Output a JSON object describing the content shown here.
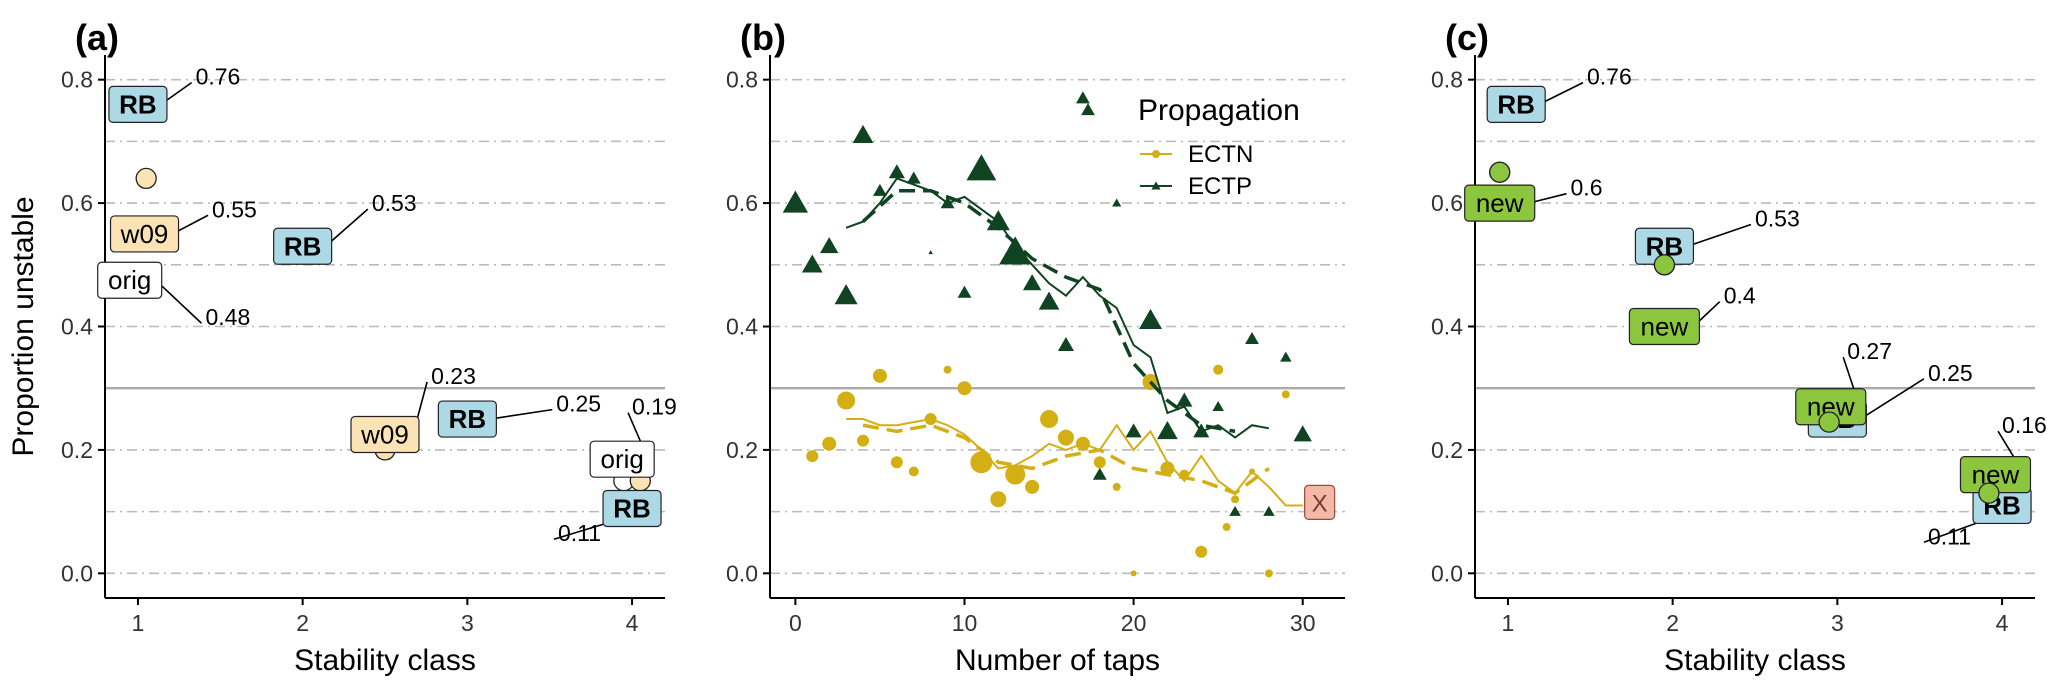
{
  "colors": {
    "ectn": "#D4AF14",
    "ectp": "#0F4321",
    "rb_fill": "#ADD8E6",
    "w09_fill": "#FBE3B5",
    "orig_fill": "#FFFFFF",
    "new_fill": "#8CC63F",
    "x_fill": "#F2B8A8",
    "hline": "#AAAAAA",
    "grid": "#BBBBBB",
    "axis": "#000000",
    "point_a": "#FBE3B5",
    "point_c": "#8CC63F"
  },
  "chart_data": [
    {
      "panel": "(a)",
      "type": "scatter",
      "xlabel": "Stability class",
      "ylabel": "Proportion unstable",
      "xlim": [
        0.8,
        4.2
      ],
      "ylim": [
        -0.04,
        0.84
      ],
      "xticks": [
        1,
        2,
        3,
        4
      ],
      "yticks": [
        0.0,
        0.2,
        0.4,
        0.6,
        0.8
      ],
      "ytick_labels": [
        "0.0",
        "0.2",
        "0.4",
        "0.6",
        "0.8"
      ],
      "hline": 0.3,
      "grid": "horizontal dash-dot",
      "points": [
        {
          "x": 1.05,
          "y": 0.64,
          "fill": "#FBE3B5"
        },
        {
          "x": 0.99,
          "y": 0.54,
          "fill": "#FFFFFF"
        },
        {
          "x": 2.5,
          "y": 0.2,
          "fill": "#FBE3B5"
        },
        {
          "x": 3.95,
          "y": 0.15,
          "fill": "#FFFFFF"
        },
        {
          "x": 4.05,
          "y": 0.15,
          "fill": "#FBE3B5"
        }
      ],
      "labels": [
        {
          "text": "RB",
          "x": 1.0,
          "y": 0.76,
          "style": "rb",
          "value": "0.76",
          "vx": 1.35,
          "vy": 0.805
        },
        {
          "text": "w09",
          "x": 1.04,
          "y": 0.55,
          "style": "w09",
          "value": "0.55",
          "vx": 1.45,
          "vy": 0.59
        },
        {
          "text": "orig",
          "x": 0.95,
          "y": 0.475,
          "style": "orig",
          "value": "0.48",
          "vx": 1.41,
          "vy": 0.415
        },
        {
          "text": "RB",
          "x": 2.0,
          "y": 0.53,
          "style": "rb",
          "value": "0.53",
          "vx": 2.42,
          "vy": 0.6
        },
        {
          "text": "w09",
          "x": 2.5,
          "y": 0.225,
          "style": "w09",
          "value": "0.23",
          "vx": 2.78,
          "vy": 0.32
        },
        {
          "text": "RB",
          "x": 3.0,
          "y": 0.25,
          "style": "rb",
          "value": "0.25",
          "vx": 3.54,
          "vy": 0.275
        },
        {
          "text": "orig",
          "x": 3.94,
          "y": 0.185,
          "style": "orig",
          "value": "0.19",
          "vx": 4.0,
          "vy": 0.27
        },
        {
          "text": "RB",
          "x": 4.0,
          "y": 0.105,
          "style": "rb",
          "value": "0.11",
          "vx": 3.55,
          "vy": 0.065
        }
      ]
    },
    {
      "panel": "(b)",
      "type": "scatter+line",
      "xlabel": "Number of taps",
      "ylabel": "",
      "xlim": [
        -1.5,
        32.5
      ],
      "ylim": [
        -0.04,
        0.84
      ],
      "xticks": [
        0,
        10,
        20,
        30
      ],
      "yticks": [
        0.0,
        0.2,
        0.4,
        0.6,
        0.8
      ],
      "ytick_labels": [
        "0.0",
        "0.2",
        "0.4",
        "0.6",
        "0.8"
      ],
      "hline": 0.3,
      "grid": "horizontal dash-dot",
      "legend": {
        "title": "Propagation",
        "position": "top-right",
        "entries": [
          "ECTN",
          "ECTP"
        ]
      },
      "x_marker": {
        "text": "X",
        "x": 31,
        "y": 0.115
      },
      "series": [
        {
          "name": "ECTN",
          "marker": "circle",
          "points": [
            {
              "x": 1,
              "y": 0.19,
              "s": 6
            },
            {
              "x": 2,
              "y": 0.21,
              "s": 7
            },
            {
              "x": 3,
              "y": 0.28,
              "s": 9
            },
            {
              "x": 4,
              "y": 0.215,
              "s": 6
            },
            {
              "x": 5,
              "y": 0.32,
              "s": 7
            },
            {
              "x": 6,
              "y": 0.18,
              "s": 6
            },
            {
              "x": 7,
              "y": 0.165,
              "s": 5
            },
            {
              "x": 8,
              "y": 0.25,
              "s": 6
            },
            {
              "x": 9,
              "y": 0.33,
              "s": 4
            },
            {
              "x": 10,
              "y": 0.3,
              "s": 7
            },
            {
              "x": 11,
              "y": 0.18,
              "s": 11
            },
            {
              "x": 12,
              "y": 0.12,
              "s": 8
            },
            {
              "x": 13,
              "y": 0.16,
              "s": 10
            },
            {
              "x": 14,
              "y": 0.14,
              "s": 7
            },
            {
              "x": 15,
              "y": 0.25,
              "s": 9
            },
            {
              "x": 16,
              "y": 0.22,
              "s": 8
            },
            {
              "x": 17,
              "y": 0.21,
              "s": 7
            },
            {
              "x": 18,
              "y": 0.18,
              "s": 6
            },
            {
              "x": 19,
              "y": 0.14,
              "s": 4
            },
            {
              "x": 20,
              "y": 0.0,
              "s": 3
            },
            {
              "x": 21,
              "y": 0.31,
              "s": 8
            },
            {
              "x": 22,
              "y": 0.17,
              "s": 7
            },
            {
              "x": 23,
              "y": 0.16,
              "s": 5
            },
            {
              "x": 24,
              "y": 0.035,
              "s": 6
            },
            {
              "x": 25,
              "y": 0.33,
              "s": 5
            },
            {
              "x": 25.5,
              "y": 0.075,
              "s": 4
            },
            {
              "x": 26,
              "y": 0.12,
              "s": 4
            },
            {
              "x": 27,
              "y": 0.165,
              "s": 3
            },
            {
              "x": 28,
              "y": 0.0,
              "s": 4
            },
            {
              "x": 29,
              "y": 0.29,
              "s": 4
            }
          ],
          "line_solid": [
            {
              "x": 3,
              "y": 0.25
            },
            {
              "x": 4,
              "y": 0.25
            },
            {
              "x": 5,
              "y": 0.24
            },
            {
              "x": 6,
              "y": 0.24
            },
            {
              "x": 7,
              "y": 0.245
            },
            {
              "x": 8,
              "y": 0.25
            },
            {
              "x": 9,
              "y": 0.24
            },
            {
              "x": 10,
              "y": 0.225
            },
            {
              "x": 11,
              "y": 0.2
            },
            {
              "x": 12,
              "y": 0.17
            },
            {
              "x": 13,
              "y": 0.175
            },
            {
              "x": 14,
              "y": 0.19
            },
            {
              "x": 15,
              "y": 0.21
            },
            {
              "x": 16,
              "y": 0.2
            },
            {
              "x": 17,
              "y": 0.21
            },
            {
              "x": 18,
              "y": 0.2
            },
            {
              "x": 19,
              "y": 0.24
            },
            {
              "x": 20,
              "y": 0.2
            },
            {
              "x": 21,
              "y": 0.23
            },
            {
              "x": 22,
              "y": 0.18
            },
            {
              "x": 23,
              "y": 0.15
            },
            {
              "x": 24,
              "y": 0.19
            },
            {
              "x": 25,
              "y": 0.15
            },
            {
              "x": 26,
              "y": 0.13
            },
            {
              "x": 27,
              "y": 0.165
            },
            {
              "x": 28,
              "y": 0.14
            },
            {
              "x": 29,
              "y": 0.11
            },
            {
              "x": 30,
              "y": 0.11
            }
          ],
          "line_dashed": [
            {
              "x": 4,
              "y": 0.24
            },
            {
              "x": 6,
              "y": 0.23
            },
            {
              "x": 8,
              "y": 0.24
            },
            {
              "x": 10,
              "y": 0.22
            },
            {
              "x": 12,
              "y": 0.18
            },
            {
              "x": 14,
              "y": 0.17
            },
            {
              "x": 16,
              "y": 0.19
            },
            {
              "x": 18,
              "y": 0.2
            },
            {
              "x": 20,
              "y": 0.17
            },
            {
              "x": 22,
              "y": 0.16
            },
            {
              "x": 24,
              "y": 0.15
            },
            {
              "x": 26,
              "y": 0.13
            },
            {
              "x": 28,
              "y": 0.17
            }
          ]
        },
        {
          "name": "ECTP",
          "marker": "triangle",
          "points": [
            {
              "x": 0,
              "y": 0.6,
              "s": 11
            },
            {
              "x": 1,
              "y": 0.5,
              "s": 9
            },
            {
              "x": 2,
              "y": 0.53,
              "s": 8
            },
            {
              "x": 3,
              "y": 0.45,
              "s": 10
            },
            {
              "x": 4,
              "y": 0.71,
              "s": 9
            },
            {
              "x": 5,
              "y": 0.62,
              "s": 6
            },
            {
              "x": 6,
              "y": 0.65,
              "s": 7
            },
            {
              "x": 7,
              "y": 0.64,
              "s": 6
            },
            {
              "x": 8,
              "y": 0.52,
              "s": 2
            },
            {
              "x": 9,
              "y": 0.6,
              "s": 6
            },
            {
              "x": 10,
              "y": 0.455,
              "s": 6
            },
            {
              "x": 11,
              "y": 0.655,
              "s": 13
            },
            {
              "x": 12,
              "y": 0.57,
              "s": 10
            },
            {
              "x": 13,
              "y": 0.52,
              "s": 14
            },
            {
              "x": 14,
              "y": 0.47,
              "s": 8
            },
            {
              "x": 15,
              "y": 0.44,
              "s": 9
            },
            {
              "x": 16,
              "y": 0.37,
              "s": 7
            },
            {
              "x": 17,
              "y": 0.77,
              "s": 6
            },
            {
              "x": 18,
              "y": 0.16,
              "s": 6
            },
            {
              "x": 19,
              "y": 0.6,
              "s": 4
            },
            {
              "x": 20,
              "y": 0.23,
              "s": 7
            },
            {
              "x": 21,
              "y": 0.41,
              "s": 10
            },
            {
              "x": 22,
              "y": 0.23,
              "s": 9
            },
            {
              "x": 23,
              "y": 0.28,
              "s": 7
            },
            {
              "x": 24,
              "y": 0.23,
              "s": 7
            },
            {
              "x": 25,
              "y": 0.27,
              "s": 5
            },
            {
              "x": 26,
              "y": 0.1,
              "s": 5
            },
            {
              "x": 27,
              "y": 0.38,
              "s": 6
            },
            {
              "x": 28,
              "y": 0.1,
              "s": 5
            },
            {
              "x": 29,
              "y": 0.35,
              "s": 5
            },
            {
              "x": 30,
              "y": 0.225,
              "s": 8
            }
          ],
          "line_solid": [
            {
              "x": 3,
              "y": 0.56
            },
            {
              "x": 4,
              "y": 0.57
            },
            {
              "x": 5,
              "y": 0.6
            },
            {
              "x": 6,
              "y": 0.64
            },
            {
              "x": 7,
              "y": 0.63
            },
            {
              "x": 8,
              "y": 0.62
            },
            {
              "x": 9,
              "y": 0.6
            },
            {
              "x": 10,
              "y": 0.61
            },
            {
              "x": 11,
              "y": 0.59
            },
            {
              "x": 12,
              "y": 0.57
            },
            {
              "x": 13,
              "y": 0.53
            },
            {
              "x": 14,
              "y": 0.5
            },
            {
              "x": 15,
              "y": 0.47
            },
            {
              "x": 16,
              "y": 0.45
            },
            {
              "x": 17,
              "y": 0.48
            },
            {
              "x": 18,
              "y": 0.45
            },
            {
              "x": 19,
              "y": 0.43
            },
            {
              "x": 20,
              "y": 0.37
            },
            {
              "x": 21,
              "y": 0.35
            },
            {
              "x": 22,
              "y": 0.26
            },
            {
              "x": 23,
              "y": 0.27
            },
            {
              "x": 24,
              "y": 0.23
            },
            {
              "x": 25,
              "y": 0.24
            },
            {
              "x": 26,
              "y": 0.22
            },
            {
              "x": 27,
              "y": 0.24
            },
            {
              "x": 28,
              "y": 0.235
            }
          ],
          "line_dashed": [
            {
              "x": 4,
              "y": 0.57
            },
            {
              "x": 6,
              "y": 0.62
            },
            {
              "x": 8,
              "y": 0.62
            },
            {
              "x": 10,
              "y": 0.6
            },
            {
              "x": 12,
              "y": 0.56
            },
            {
              "x": 14,
              "y": 0.51
            },
            {
              "x": 16,
              "y": 0.48
            },
            {
              "x": 18,
              "y": 0.46
            },
            {
              "x": 20,
              "y": 0.34
            },
            {
              "x": 22,
              "y": 0.28
            },
            {
              "x": 24,
              "y": 0.24
            },
            {
              "x": 26,
              "y": 0.23
            }
          ]
        }
      ]
    },
    {
      "panel": "(c)",
      "type": "scatter",
      "xlabel": "Stability class",
      "ylabel": "",
      "xlim": [
        0.8,
        4.2
      ],
      "ylim": [
        -0.04,
        0.84
      ],
      "xticks": [
        1,
        2,
        3,
        4
      ],
      "yticks": [
        0.0,
        0.2,
        0.4,
        0.6,
        0.8
      ],
      "ytick_labels": [
        "0.0",
        "0.2",
        "0.4",
        "0.6",
        "0.8"
      ],
      "hline": 0.3,
      "grid": "horizontal dash-dot",
      "points": [
        {
          "x": 0.95,
          "y": 0.65,
          "fill": "#8CC63F"
        },
        {
          "x": 1.95,
          "y": 0.5,
          "fill": "#8CC63F"
        },
        {
          "x": 2.95,
          "y": 0.245,
          "fill": "#8CC63F"
        },
        {
          "x": 3.92,
          "y": 0.13,
          "fill": "#8CC63F"
        }
      ],
      "labels": [
        {
          "text": "RB",
          "x": 1.05,
          "y": 0.76,
          "style": "rb",
          "value": "0.76",
          "vx": 1.48,
          "vy": 0.805
        },
        {
          "text": "new",
          "x": 0.95,
          "y": 0.6,
          "style": "new",
          "value": "0.6",
          "vx": 1.38,
          "vy": 0.625
        },
        {
          "text": "RB",
          "x": 1.95,
          "y": 0.53,
          "style": "rb",
          "value": "0.53",
          "vx": 2.5,
          "vy": 0.575
        },
        {
          "text": "new",
          "x": 1.95,
          "y": 0.4,
          "style": "new",
          "value": "0.4",
          "vx": 2.31,
          "vy": 0.45
        },
        {
          "text": "RB",
          "x": 3.0,
          "y": 0.25,
          "style": "rb",
          "value": "0.25",
          "vx": 3.55,
          "vy": 0.325
        },
        {
          "text": "new",
          "x": 2.96,
          "y": 0.27,
          "style": "new",
          "value": "0.27",
          "vx": 3.06,
          "vy": 0.36
        },
        {
          "text": "RB",
          "x": 4.0,
          "y": 0.11,
          "style": "rb",
          "value": "0.11",
          "vx": 3.55,
          "vy": 0.06
        },
        {
          "text": "new",
          "x": 3.96,
          "y": 0.16,
          "style": "new",
          "value": "0.16",
          "vx": 4.0,
          "vy": 0.24
        }
      ]
    }
  ]
}
